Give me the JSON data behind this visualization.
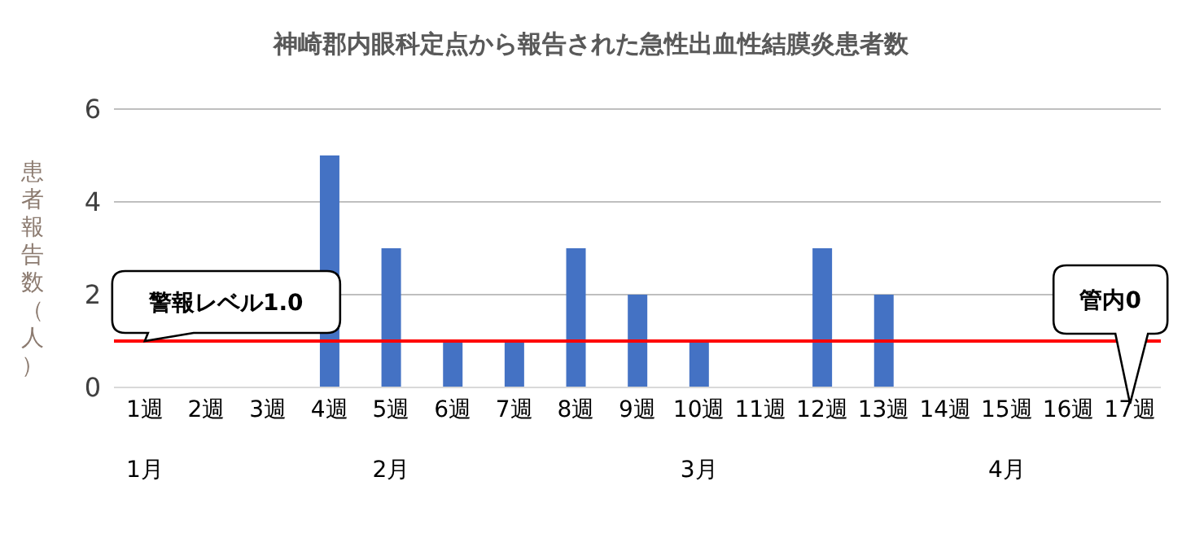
{
  "chart_data": {
    "type": "bar",
    "title": "神崎郡内眼科定点から報告された急性出血性結膜炎患者数",
    "ylabel": "患者報告数（人）",
    "categories": [
      "1週",
      "2週",
      "3週",
      "4週",
      "5週",
      "6週",
      "7週",
      "8週",
      "9週",
      "10週",
      "11週",
      "12週",
      "13週",
      "14週",
      "15週",
      "16週",
      "17週"
    ],
    "values": [
      0,
      0,
      0,
      5,
      3,
      1,
      1,
      3,
      2,
      1,
      0,
      3,
      2,
      0,
      0,
      0,
      0
    ],
    "color": "#4472c4",
    "ylim": [
      0,
      6
    ],
    "yticks": [
      0,
      2,
      4,
      6
    ],
    "grid": "y",
    "ref_lines": [
      {
        "axis": "y",
        "value": 1,
        "color": "#ff0000"
      }
    ],
    "annotations": [
      {
        "text": "警報レベル1.0",
        "x": "1週",
        "y": 1
      },
      "管内0",
      "1月",
      "2月",
      "3月",
      "4月"
    ]
  }
}
